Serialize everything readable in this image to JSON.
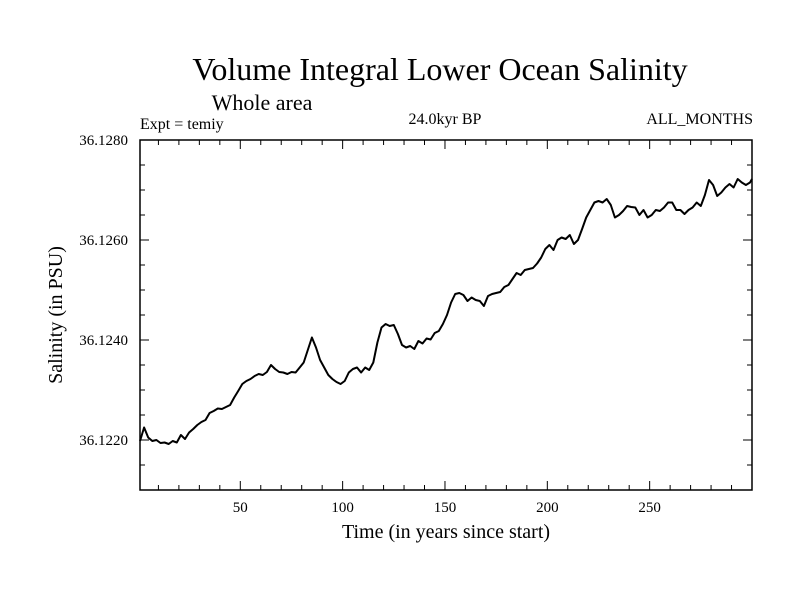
{
  "chart_data": {
    "type": "line",
    "title": "Volume Integral Lower Ocean Salinity",
    "subtitle": "Whole area",
    "left_string": "Expt = temiy",
    "center_string": "24.0kyr BP",
    "right_string": "ALL_MONTHS",
    "xlabel": "Time (in years since start)",
    "ylabel": "Salinity (in PSU)",
    "xlim": [
      1,
      300
    ],
    "ylim": [
      36.121,
      36.128
    ],
    "xticks": [
      50,
      100,
      150,
      200,
      250
    ],
    "xtick_labels": [
      "50",
      "100",
      "150",
      "200",
      "250"
    ],
    "yticks": [
      36.122,
      36.124,
      36.126,
      36.128
    ],
    "ytick_labels": [
      "36.1220",
      "36.1240",
      "36.1260",
      "36.1280"
    ],
    "series": [
      {
        "name": "salinity",
        "x": [
          1,
          3,
          5,
          7,
          9,
          11,
          13,
          15,
          17,
          19,
          21,
          23,
          25,
          27,
          29,
          31,
          33,
          35,
          37,
          39,
          41,
          43,
          45,
          47,
          49,
          51,
          53,
          55,
          57,
          59,
          61,
          63,
          65,
          67,
          69,
          71,
          73,
          75,
          77,
          79,
          81,
          83,
          85,
          87,
          89,
          91,
          93,
          95,
          97,
          99,
          101,
          103,
          105,
          107,
          109,
          111,
          113,
          115,
          117,
          119,
          121,
          123,
          125,
          127,
          129,
          131,
          133,
          135,
          137,
          139,
          141,
          143,
          145,
          147,
          149,
          151,
          153,
          155,
          157,
          159,
          161,
          163,
          165,
          167,
          169,
          171,
          173,
          175,
          177,
          179,
          181,
          183,
          185,
          187,
          189,
          191,
          193,
          195,
          197,
          199,
          201,
          203,
          205,
          207,
          209,
          211,
          213,
          215,
          217,
          219,
          221,
          223,
          225,
          227,
          229,
          231,
          233,
          235,
          237,
          239,
          241,
          243,
          245,
          247,
          249,
          251,
          253,
          255,
          257,
          259,
          261,
          263,
          265,
          267,
          269,
          271,
          273,
          275,
          277,
          279,
          281,
          283,
          285,
          287,
          289,
          291,
          293,
          295,
          297,
          299,
          300
        ],
        "values": [
          36.12198,
          36.12225,
          36.12205,
          36.12198,
          36.122,
          36.12194,
          36.12195,
          36.12192,
          36.12198,
          36.12195,
          36.1221,
          36.12202,
          36.12215,
          36.12222,
          36.1223,
          36.12236,
          36.1224,
          36.12254,
          36.12258,
          36.12263,
          36.12262,
          36.12266,
          36.1227,
          36.12285,
          36.12298,
          36.12312,
          36.12318,
          36.12322,
          36.12328,
          36.12332,
          36.1233,
          36.12336,
          36.1235,
          36.12342,
          36.12336,
          36.12335,
          36.12332,
          36.12336,
          36.12335,
          36.12345,
          36.12355,
          36.1238,
          36.12405,
          36.12385,
          36.1236,
          36.12345,
          36.1233,
          36.12322,
          36.12316,
          36.12312,
          36.12318,
          36.12335,
          36.12342,
          36.12345,
          36.12335,
          36.12345,
          36.1234,
          36.12355,
          36.12395,
          36.12425,
          36.12432,
          36.12428,
          36.1243,
          36.12412,
          36.1239,
          36.12385,
          36.12388,
          36.12382,
          36.12398,
          36.12393,
          36.12403,
          36.12401,
          36.12414,
          36.12418,
          36.12432,
          36.1245,
          36.12475,
          36.12492,
          36.12494,
          36.1249,
          36.12478,
          36.12485,
          36.1248,
          36.12478,
          36.12468,
          36.12488,
          36.12492,
          36.12494,
          36.12496,
          36.12506,
          36.1251,
          36.12522,
          36.12534,
          36.1253,
          36.1254,
          36.12542,
          36.12544,
          36.12553,
          36.12565,
          36.12582,
          36.1259,
          36.1258,
          36.126,
          36.12605,
          36.12602,
          36.1261,
          36.12592,
          36.126,
          36.12622,
          36.12645,
          36.1266,
          36.12675,
          36.12678,
          36.12675,
          36.12682,
          36.1267,
          36.12645,
          36.1265,
          36.12658,
          36.12668,
          36.12666,
          36.12665,
          36.1265,
          36.1266,
          36.12645,
          36.1265,
          36.1266,
          36.12658,
          36.12665,
          36.12675,
          36.12675,
          36.1266,
          36.1266,
          36.12652,
          36.1266,
          36.12665,
          36.12675,
          36.12668,
          36.1269,
          36.1272,
          36.1271,
          36.12688,
          36.12695,
          36.12705,
          36.12712,
          36.12705,
          36.12722,
          36.12715,
          36.1271,
          36.12715,
          36.12722
        ]
      }
    ]
  }
}
